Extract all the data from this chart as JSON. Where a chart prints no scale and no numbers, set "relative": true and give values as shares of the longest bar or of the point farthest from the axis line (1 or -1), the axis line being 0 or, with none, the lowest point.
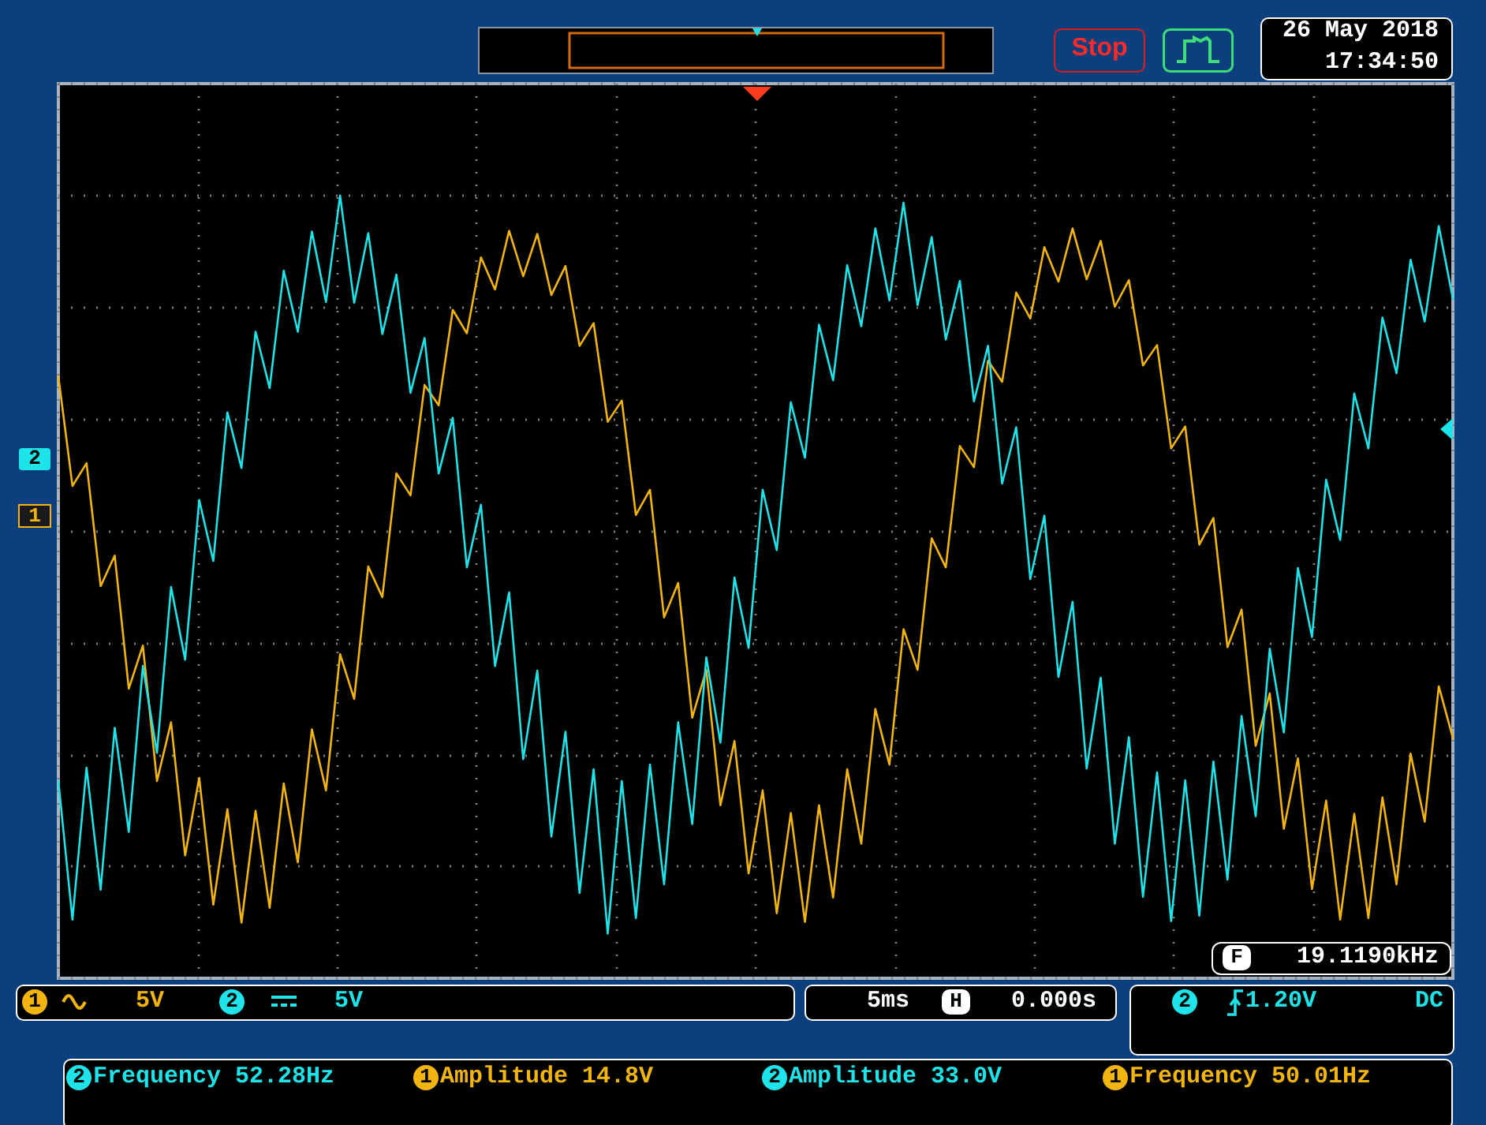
{
  "chart_data": {
    "type": "line",
    "relative": true,
    "grid": true,
    "marker": "none",
    "line_style": "solid",
    "categories": [
      null,
      null,
      null,
      null,
      null,
      null,
      null,
      null,
      null,
      null,
      null,
      null,
      null,
      null,
      null,
      null,
      null,
      null,
      null,
      null,
      null,
      null,
      null,
      null,
      null,
      null,
      null,
      null,
      null,
      null,
      null,
      null,
      null,
      null,
      null,
      null,
      null,
      null,
      null,
      null,
      null,
      null,
      null,
      null,
      null,
      null,
      null,
      null,
      null,
      null,
      null,
      null,
      null,
      null,
      null,
      null,
      null,
      null,
      null,
      null,
      null,
      null,
      null,
      null,
      null,
      null,
      null,
      null,
      null,
      null,
      null,
      null,
      null,
      null,
      null,
      null,
      null,
      null,
      null,
      null,
      null,
      null,
      null,
      null,
      null,
      null,
      null,
      null,
      null,
      null,
      null,
      null,
      null,
      null,
      null,
      null,
      null,
      null,
      null,
      null
    ],
    "series": [
      {
        "color": "#f2b50f",
        "values": [
          0.769,
          0.629,
          0.658,
          0.501,
          0.54,
          0.37,
          0.425,
          0.252,
          0.327,
          0.157,
          0.256,
          0.094,
          0.216,
          0.071,
          0.214,
          0.09,
          0.249,
          0.148,
          0.318,
          0.24,
          0.414,
          0.357,
          0.526,
          0.487,
          0.645,
          0.617,
          0.758,
          0.732,
          0.854,
          0.824,
          0.921,
          0.88,
          0.955,
          0.897,
          0.951,
          0.873,
          0.91,
          0.808,
          0.837,
          0.711,
          0.738,
          0.592,
          0.624,
          0.461,
          0.505,
          0.333,
          0.394,
          0.221,
          0.303,
          0.134,
          0.24,
          0.083,
          0.211,
          0.072,
          0.221,
          0.103,
          0.267,
          0.172,
          0.344,
          0.273,
          0.446,
          0.394,
          0.562,
          0.525,
          0.68,
          0.653,
          0.789,
          0.762,
          0.876,
          0.843,
          0.934,
          0.89,
          0.958,
          0.893,
          0.942,
          0.858,
          0.892,
          0.783,
          0.809,
          0.677,
          0.705,
          0.554,
          0.588,
          0.423,
          0.471,
          0.297,
          0.364,
          0.191,
          0.281,
          0.114,
          0.227,
          0.075,
          0.21,
          0.077,
          0.231,
          0.12,
          0.287,
          0.2,
          0.373,
          0.307
        ]
      },
      {
        "color": "#1ee3e8",
        "values": [
          0.252,
          0.075,
          0.269,
          0.113,
          0.32,
          0.187,
          0.399,
          0.288,
          0.5,
          0.407,
          0.611,
          0.533,
          0.723,
          0.652,
          0.826,
          0.754,
          0.904,
          0.826,
          0.954,
          0.864,
          1.0,
          0.863,
          0.952,
          0.823,
          0.899,
          0.748,
          0.818,
          0.645,
          0.716,
          0.525,
          0.605,
          0.399,
          0.493,
          0.28,
          0.393,
          0.181,
          0.315,
          0.109,
          0.267,
          0.057,
          0.252,
          0.077,
          0.273,
          0.12,
          0.327,
          0.197,
          0.41,
          0.301,
          0.512,
          0.422,
          0.624,
          0.547,
          0.736,
          0.665,
          0.835,
          0.764,
          0.911,
          0.833,
          0.958,
          0.866,
          0.991,
          0.86,
          0.947,
          0.816,
          0.891,
          0.737,
          0.808,
          0.632,
          0.704,
          0.51,
          0.591,
          0.385,
          0.481,
          0.268,
          0.384,
          0.172,
          0.308,
          0.104,
          0.263,
          0.073,
          0.253,
          0.08,
          0.277,
          0.126,
          0.335,
          0.207,
          0.421,
          0.314,
          0.524,
          0.436,
          0.637,
          0.56,
          0.747,
          0.677,
          0.844,
          0.773,
          0.918,
          0.839,
          0.961,
          0.868
        ]
      }
    ],
    "annotations": [
      "Stop",
      "26 May 2018",
      "17:34:50",
      "19.1190kHz",
      "F",
      "2",
      "1",
      "1",
      "5V",
      "2",
      "5V",
      "5ms",
      "H",
      "0.000s",
      "2",
      "1.20V",
      "DC",
      "2",
      "Frequency 52.28Hz",
      "1",
      "Amplitude 14.8V",
      "2",
      "Amplitude 33.0V",
      "1",
      "Frequency 50.01Hz"
    ]
  }
}
